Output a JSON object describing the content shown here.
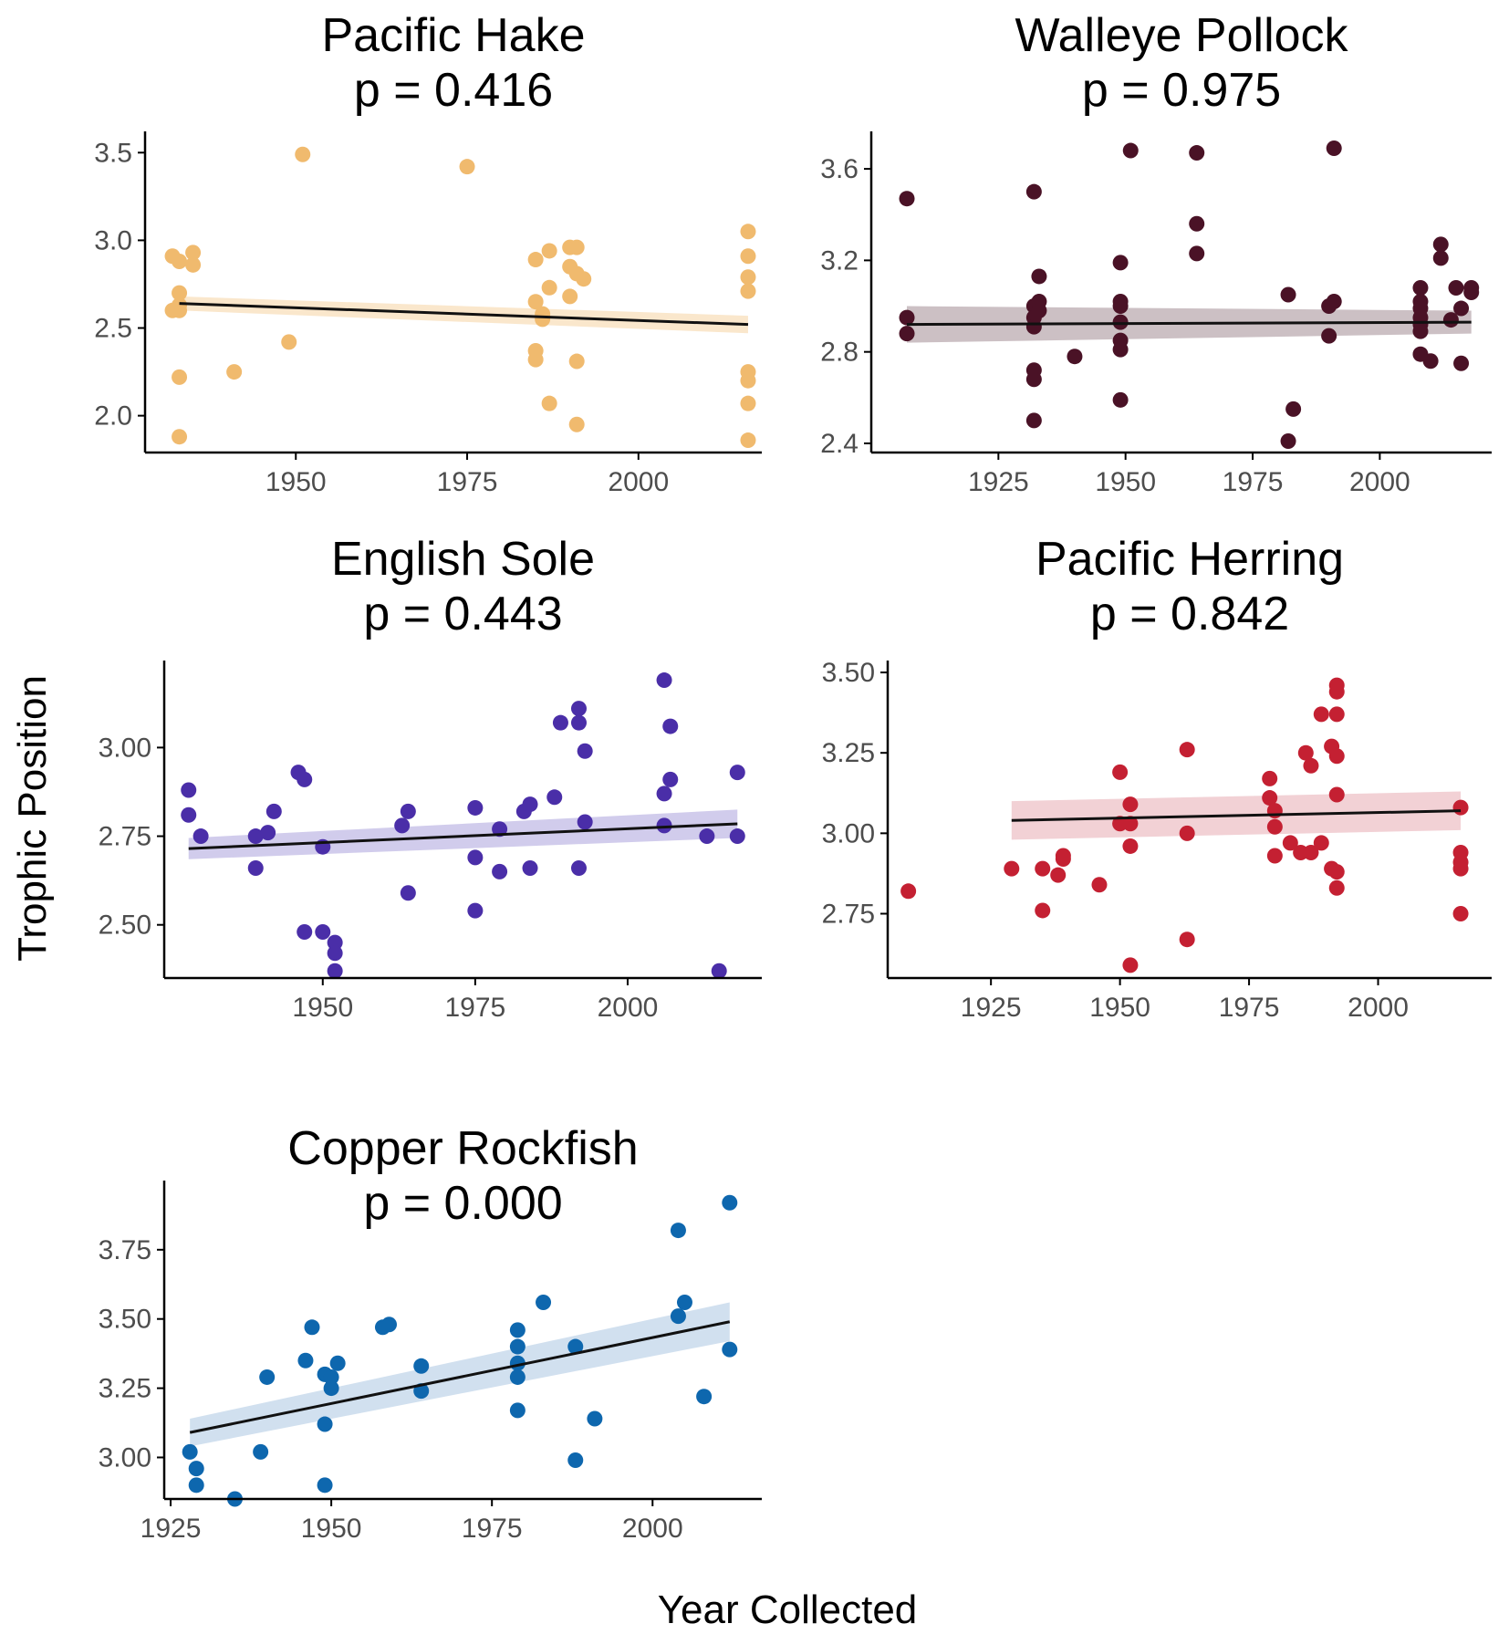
{
  "figure": {
    "ylabel": "Trophic Position",
    "xlabel": "Year Collected"
  },
  "chart_data": [
    {
      "type": "scatter",
      "title": "Pacific Hake",
      "subtitle": "p = 0.416",
      "color": "#F0BA6E",
      "band_color": "#F0BA6E",
      "xlim": [
        1928,
        2018
      ],
      "ylim": [
        1.79,
        3.59
      ],
      "xticks": [
        1950,
        1975,
        2000
      ],
      "yticks": [
        2.0,
        2.5,
        3.0,
        3.5
      ],
      "ytick_labels": [
        "2.0",
        "2.5",
        "3.0",
        "3.5"
      ],
      "fit": {
        "x0": 1933,
        "y0": 2.64,
        "x1": 2016,
        "y1": 2.52,
        "ci0": 0.04,
        "ci1": 0.05
      },
      "points": [
        [
          1932,
          2.91
        ],
        [
          1933,
          2.88
        ],
        [
          1935,
          2.93
        ],
        [
          1935,
          2.86
        ],
        [
          1933,
          2.7
        ],
        [
          1933,
          2.63
        ],
        [
          1932,
          2.6
        ],
        [
          1933,
          2.6
        ],
        [
          1933,
          2.22
        ],
        [
          1933,
          1.88
        ],
        [
          1941,
          2.25
        ],
        [
          1949,
          2.42
        ],
        [
          1951,
          3.49
        ],
        [
          1975,
          3.42
        ],
        [
          1985,
          2.89
        ],
        [
          1987,
          2.94
        ],
        [
          1985,
          2.65
        ],
        [
          1986,
          2.58
        ],
        [
          1986,
          2.55
        ],
        [
          1987,
          2.73
        ],
        [
          1985,
          2.37
        ],
        [
          1985,
          2.32
        ],
        [
          1987,
          2.07
        ],
        [
          1990,
          2.96
        ],
        [
          1991,
          2.96
        ],
        [
          1990,
          2.85
        ],
        [
          1991,
          2.81
        ],
        [
          1992,
          2.78
        ],
        [
          1990,
          2.68
        ],
        [
          1991,
          2.31
        ],
        [
          1991,
          1.95
        ],
        [
          2016,
          3.05
        ],
        [
          2016,
          2.91
        ],
        [
          2016,
          2.79
        ],
        [
          2016,
          2.71
        ],
        [
          2016,
          2.25
        ],
        [
          2016,
          2.2
        ],
        [
          2016,
          2.07
        ],
        [
          2016,
          1.86
        ]
      ]
    },
    {
      "type": "scatter",
      "title": "Walleye Pollock",
      "subtitle": "p = 0.975",
      "color": "#4A1226",
      "band_color": "#6E4A57",
      "xlim": [
        1900,
        2022
      ],
      "ylim": [
        2.36,
        3.74
      ],
      "xticks": [
        1925,
        1950,
        1975,
        2000
      ],
      "yticks": [
        2.4,
        2.8,
        3.2,
        3.6
      ],
      "ytick_labels": [
        "2.4",
        "2.8",
        "3.2",
        "3.6"
      ],
      "fit": {
        "x0": 1907,
        "y0": 2.92,
        "x1": 2018,
        "y1": 2.93,
        "ci0": 0.08,
        "ci1": 0.05
      },
      "points": [
        [
          1907,
          3.47
        ],
        [
          1907,
          2.95
        ],
        [
          1907,
          2.88
        ],
        [
          1932,
          3.5
        ],
        [
          1933,
          3.13
        ],
        [
          1933,
          3.02
        ],
        [
          1932,
          3.0
        ],
        [
          1933,
          2.98
        ],
        [
          1932,
          2.95
        ],
        [
          1932,
          2.91
        ],
        [
          1932,
          2.72
        ],
        [
          1932,
          2.68
        ],
        [
          1932,
          2.5
        ],
        [
          1940,
          2.78
        ],
        [
          1949,
          3.19
        ],
        [
          1949,
          3.02
        ],
        [
          1949,
          3.0
        ],
        [
          1949,
          2.93
        ],
        [
          1949,
          2.85
        ],
        [
          1949,
          2.81
        ],
        [
          1949,
          2.59
        ],
        [
          1951,
          3.68
        ],
        [
          1964,
          3.67
        ],
        [
          1964,
          3.36
        ],
        [
          1964,
          3.23
        ],
        [
          1982,
          3.05
        ],
        [
          1983,
          2.55
        ],
        [
          1982,
          2.41
        ],
        [
          1991,
          3.69
        ],
        [
          1991,
          3.02
        ],
        [
          1990,
          3.0
        ],
        [
          1990,
          2.87
        ],
        [
          2008,
          3.08
        ],
        [
          2008,
          3.02
        ],
        [
          2008,
          2.99
        ],
        [
          2008,
          2.95
        ],
        [
          2008,
          2.92
        ],
        [
          2008,
          2.89
        ],
        [
          2008,
          2.79
        ],
        [
          2010,
          2.76
        ],
        [
          2012,
          3.27
        ],
        [
          2012,
          3.21
        ],
        [
          2014,
          2.94
        ],
        [
          2015,
          3.08
        ],
        [
          2016,
          2.99
        ],
        [
          2016,
          2.75
        ],
        [
          2018,
          3.08
        ],
        [
          2018,
          3.06
        ]
      ]
    },
    {
      "type": "scatter",
      "title": "English Sole",
      "subtitle": "p = 0.443",
      "color": "#4A2EA8",
      "band_color": "#7A6CC8",
      "xlim": [
        1924,
        2022
      ],
      "ylim": [
        2.35,
        3.23
      ],
      "xticks": [
        1950,
        1975,
        2000
      ],
      "yticks": [
        2.5,
        2.75,
        3.0
      ],
      "ytick_labels": [
        "2.50",
        "2.75",
        "3.00"
      ],
      "fit": {
        "x0": 1928,
        "y0": 2.715,
        "x1": 2018,
        "y1": 2.785,
        "ci0": 0.03,
        "ci1": 0.04
      },
      "points": [
        [
          1928,
          2.88
        ],
        [
          1928,
          2.81
        ],
        [
          1930,
          2.75
        ],
        [
          1939,
          2.75
        ],
        [
          1939,
          2.66
        ],
        [
          1941,
          2.76
        ],
        [
          1942,
          2.82
        ],
        [
          1946,
          2.93
        ],
        [
          1947,
          2.91
        ],
        [
          1947,
          2.48
        ],
        [
          1950,
          2.72
        ],
        [
          1950,
          2.48
        ],
        [
          1952,
          2.45
        ],
        [
          1952,
          2.42
        ],
        [
          1952,
          2.37
        ],
        [
          1963,
          2.78
        ],
        [
          1964,
          2.82
        ],
        [
          1964,
          2.59
        ],
        [
          1975,
          2.83
        ],
        [
          1975,
          2.69
        ],
        [
          1975,
          2.54
        ],
        [
          1979,
          2.77
        ],
        [
          1979,
          2.65
        ],
        [
          1983,
          2.82
        ],
        [
          1984,
          2.84
        ],
        [
          1984,
          2.66
        ],
        [
          1988,
          2.86
        ],
        [
          1989,
          3.07
        ],
        [
          1992,
          3.11
        ],
        [
          1992,
          3.07
        ],
        [
          1992,
          2.66
        ],
        [
          1993,
          2.99
        ],
        [
          1993,
          2.79
        ],
        [
          2006,
          3.19
        ],
        [
          2006,
          2.87
        ],
        [
          2006,
          2.78
        ],
        [
          2007,
          3.06
        ],
        [
          2007,
          2.91
        ],
        [
          2013,
          2.75
        ],
        [
          2015,
          2.37
        ],
        [
          2018,
          2.93
        ],
        [
          2018,
          2.75
        ]
      ]
    },
    {
      "type": "scatter",
      "title": "Pacific Herring",
      "subtitle": "p = 0.842",
      "color": "#C42032",
      "band_color": "#D97A86",
      "xlim": [
        1905,
        2022
      ],
      "ylim": [
        2.55,
        3.52
      ],
      "xticks": [
        1925,
        1950,
        1975,
        2000
      ],
      "yticks": [
        2.75,
        3.0,
        3.25,
        3.5
      ],
      "ytick_labels": [
        "2.75",
        "3.00",
        "3.25",
        "3.50"
      ],
      "fit": {
        "x0": 1929,
        "y0": 3.04,
        "x1": 2016,
        "y1": 3.07,
        "ci0": 0.06,
        "ci1": 0.06
      },
      "points": [
        [
          1909,
          2.82
        ],
        [
          1929,
          2.89
        ],
        [
          1935,
          2.89
        ],
        [
          1935,
          2.76
        ],
        [
          1938,
          2.87
        ],
        [
          1939,
          2.93
        ],
        [
          1939,
          2.92
        ],
        [
          1946,
          2.84
        ],
        [
          1950,
          3.19
        ],
        [
          1950,
          3.03
        ],
        [
          1952,
          3.09
        ],
        [
          1952,
          3.03
        ],
        [
          1952,
          2.96
        ],
        [
          1952,
          2.59
        ],
        [
          1963,
          3.26
        ],
        [
          1963,
          3.0
        ],
        [
          1963,
          2.67
        ],
        [
          1979,
          3.17
        ],
        [
          1979,
          3.11
        ],
        [
          1980,
          3.07
        ],
        [
          1980,
          3.02
        ],
        [
          1980,
          2.93
        ],
        [
          1983,
          2.97
        ],
        [
          1985,
          2.94
        ],
        [
          1986,
          3.25
        ],
        [
          1987,
          3.21
        ],
        [
          1987,
          2.94
        ],
        [
          1989,
          3.37
        ],
        [
          1989,
          2.97
        ],
        [
          1991,
          3.27
        ],
        [
          1991,
          2.89
        ],
        [
          1992,
          3.46
        ],
        [
          1992,
          3.44
        ],
        [
          1992,
          3.37
        ],
        [
          1992,
          3.24
        ],
        [
          1992,
          3.12
        ],
        [
          1992,
          2.88
        ],
        [
          1992,
          2.83
        ],
        [
          2016,
          3.08
        ],
        [
          2016,
          2.94
        ],
        [
          2016,
          2.91
        ],
        [
          2016,
          2.89
        ],
        [
          2016,
          2.75
        ]
      ]
    },
    {
      "type": "scatter",
      "title": "Copper Rockfish",
      "subtitle": "p = 0.000",
      "color": "#0E67AE",
      "band_color": "#7BA7D2",
      "xlim": [
        1924,
        2017
      ],
      "ylim": [
        2.85,
        3.98
      ],
      "xticks": [
        1925,
        1950,
        1975,
        2000
      ],
      "yticks": [
        3.0,
        3.25,
        3.5,
        3.75
      ],
      "ytick_labels": [
        "3.00",
        "3.25",
        "3.50",
        "3.75"
      ],
      "fit": {
        "x0": 1928,
        "y0": 3.09,
        "x1": 2012,
        "y1": 3.49,
        "ci0": 0.05,
        "ci1": 0.07
      },
      "points": [
        [
          1928,
          3.02
        ],
        [
          1929,
          2.96
        ],
        [
          1929,
          2.9
        ],
        [
          1935,
          2.85
        ],
        [
          1939,
          3.02
        ],
        [
          1940,
          3.29
        ],
        [
          1946,
          3.35
        ],
        [
          1947,
          3.47
        ],
        [
          1949,
          3.3
        ],
        [
          1949,
          3.12
        ],
        [
          1949,
          2.9
        ],
        [
          1950,
          3.29
        ],
        [
          1950,
          3.25
        ],
        [
          1951,
          3.34
        ],
        [
          1958,
          3.47
        ],
        [
          1959,
          3.48
        ],
        [
          1964,
          3.33
        ],
        [
          1964,
          3.24
        ],
        [
          1979,
          3.46
        ],
        [
          1979,
          3.4
        ],
        [
          1979,
          3.34
        ],
        [
          1979,
          3.29
        ],
        [
          1979,
          3.17
        ],
        [
          1983,
          3.56
        ],
        [
          1988,
          3.4
        ],
        [
          1988,
          2.99
        ],
        [
          1991,
          3.14
        ],
        [
          2004,
          3.82
        ],
        [
          2004,
          3.51
        ],
        [
          2005,
          3.56
        ],
        [
          2008,
          3.22
        ],
        [
          2012,
          3.92
        ],
        [
          2012,
          3.39
        ]
      ]
    }
  ]
}
